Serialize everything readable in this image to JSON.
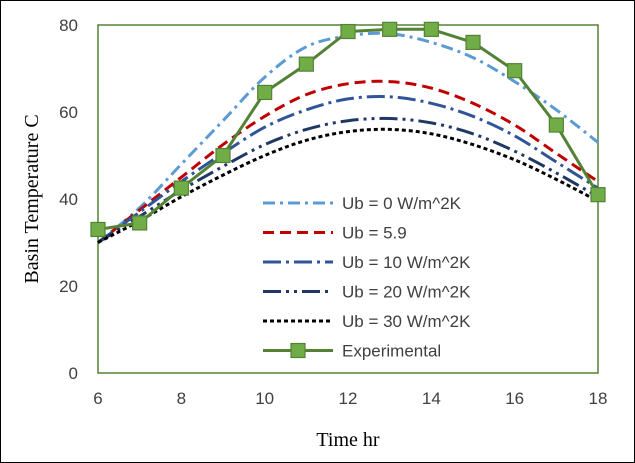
{
  "chart_data": {
    "type": "line",
    "xlabel": "Time  hr",
    "ylabel": "Basin Temperature  C",
    "xlim": [
      6,
      18
    ],
    "ylim": [
      0,
      80
    ],
    "xticks": [
      6,
      8,
      10,
      12,
      14,
      16,
      18
    ],
    "yticks": [
      0,
      20,
      40,
      60,
      80
    ],
    "grid": false,
    "legend_position": "center-right",
    "series": [
      {
        "name": "Ub = 0 W/m^2K",
        "color": "#5b9bd5",
        "style": "dash-dot",
        "x": [
          6,
          7,
          8,
          9,
          10,
          11,
          12,
          13,
          14,
          15,
          16,
          17,
          18
        ],
        "y": [
          30,
          38,
          48,
          58,
          68,
          75,
          77.5,
          78,
          76,
          72.5,
          67,
          60.5,
          53
        ]
      },
      {
        "name": "Ub = 5.9",
        "color": "#c00000",
        "style": "dash",
        "x": [
          6,
          7,
          8,
          9,
          10,
          11,
          12,
          13,
          14,
          15,
          16,
          17,
          18
        ],
        "y": [
          30,
          37.5,
          45,
          52.5,
          59,
          64,
          66.5,
          67,
          65.5,
          62,
          57,
          50.5,
          44
        ]
      },
      {
        "name": "Ub = 10 W/m^2K",
        "color": "#2f5597",
        "style": "long-dash-dot",
        "x": [
          6,
          7,
          8,
          9,
          10,
          11,
          12,
          13,
          14,
          15,
          16,
          17,
          18
        ],
        "y": [
          30,
          37,
          44,
          50.5,
          56.5,
          60.5,
          63,
          63.5,
          62,
          59,
          54.5,
          48.5,
          42.5
        ]
      },
      {
        "name": "Ub = 20 W/m^2K",
        "color": "#203864",
        "style": "long-dash-dot-dot",
        "x": [
          6,
          7,
          8,
          9,
          10,
          11,
          12,
          13,
          14,
          15,
          16,
          17,
          18
        ],
        "y": [
          30,
          36,
          42,
          47.5,
          52.5,
          56,
          58,
          58.5,
          57.5,
          55,
          51,
          46,
          40.5
        ]
      },
      {
        "name": "Ub = 30 W/m^2K",
        "color": "#000000",
        "style": "dotted",
        "x": [
          6,
          7,
          8,
          9,
          10,
          11,
          12,
          13,
          14,
          15,
          16,
          17,
          18
        ],
        "y": [
          30,
          35,
          40.5,
          45.5,
          50,
          53.5,
          55.5,
          56,
          55,
          52.5,
          49,
          44.5,
          39.5
        ]
      },
      {
        "name": "Experimental",
        "color": "#548235",
        "marker_color": "#70ad47",
        "style": "solid-square",
        "x": [
          6,
          7,
          8,
          9,
          10,
          11,
          12,
          13,
          14,
          15,
          16,
          17,
          18
        ],
        "y": [
          33,
          34.5,
          42.5,
          50,
          64.5,
          71,
          78.5,
          79,
          79,
          76,
          69.5,
          57,
          41
        ]
      }
    ]
  }
}
